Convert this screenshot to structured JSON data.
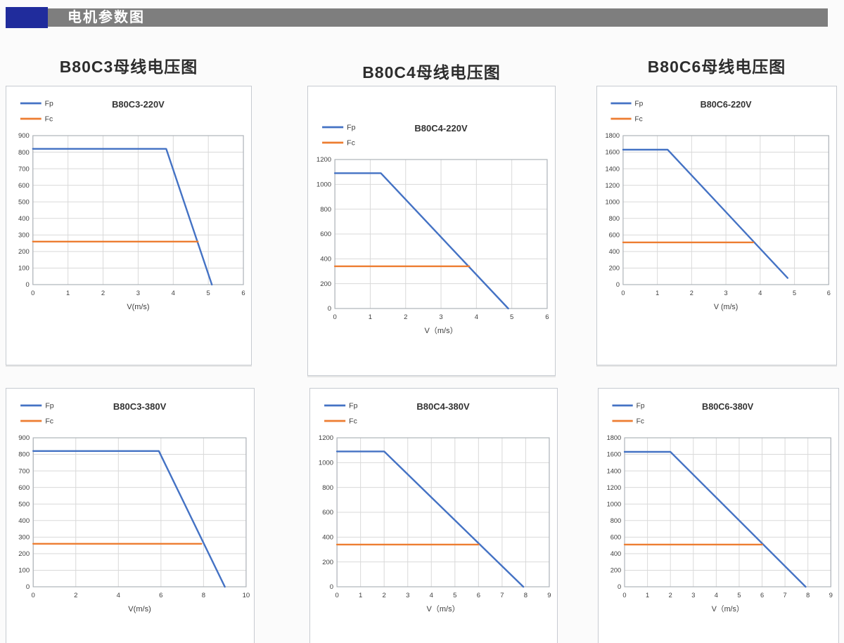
{
  "header": {
    "title": "电机参数图"
  },
  "colors": {
    "accent": "#202c9c",
    "header_bar": "#7e7e7e",
    "fp": "#4472c4",
    "fc": "#ed7d31",
    "grid": "#d9d9d9",
    "axis_line": "#aeb3b9",
    "axis_text": "#3d3d3d",
    "chart_title_text": "#333333"
  },
  "chart_data": [
    {
      "type": "line",
      "heading": "B80C3母线电压图",
      "title": "B80C3-220V",
      "xlabel": "V(m/s)",
      "xlim": [
        0,
        6
      ],
      "xstep": 1,
      "ylim": [
        0,
        900
      ],
      "ystep": 100,
      "legend_position": "top-left",
      "grid": true,
      "series": [
        {
          "name": "Fp",
          "key": "fp",
          "points": [
            [
              0,
              820
            ],
            [
              3.8,
              820
            ],
            [
              5.1,
              0
            ]
          ]
        },
        {
          "name": "Fc",
          "key": "fc",
          "points": [
            [
              0,
              260
            ],
            [
              4.7,
              260
            ]
          ]
        }
      ]
    },
    {
      "type": "line",
      "heading": "B80C4母线电压图",
      "title": "B80C4-220V",
      "xlabel": "V（m/s）",
      "xlim": [
        0,
        6
      ],
      "xstep": 1,
      "ylim": [
        0,
        1200
      ],
      "ystep": 200,
      "legend_position": "top-left",
      "grid": true,
      "series": [
        {
          "name": "Fp",
          "key": "fp",
          "points": [
            [
              0,
              1090
            ],
            [
              1.3,
              1090
            ],
            [
              4.9,
              0
            ]
          ]
        },
        {
          "name": "Fc",
          "key": "fc",
          "points": [
            [
              0,
              340
            ],
            [
              3.8,
              340
            ]
          ]
        }
      ]
    },
    {
      "type": "line",
      "heading": "B80C6母线电压图",
      "title": "B80C6-220V",
      "xlabel": "V (m/s)",
      "xlim": [
        0,
        6
      ],
      "xstep": 1,
      "ylim": [
        0,
        1800
      ],
      "ystep": 200,
      "legend_position": "top-left",
      "grid": true,
      "series": [
        {
          "name": "Fp",
          "key": "fp",
          "points": [
            [
              0,
              1630
            ],
            [
              1.3,
              1630
            ],
            [
              4.8,
              80
            ]
          ]
        },
        {
          "name": "Fc",
          "key": "fc",
          "points": [
            [
              0,
              510
            ],
            [
              3.8,
              510
            ]
          ]
        }
      ]
    },
    {
      "type": "line",
      "heading": "",
      "title": "B80C3-380V",
      "xlabel": "V(m/s)",
      "xlim": [
        0,
        10
      ],
      "xstep": 2,
      "ylim": [
        0,
        900
      ],
      "ystep": 100,
      "legend_position": "top-left",
      "grid": true,
      "series": [
        {
          "name": "Fp",
          "key": "fp",
          "points": [
            [
              0,
              820
            ],
            [
              5.9,
              820
            ],
            [
              9,
              0
            ]
          ]
        },
        {
          "name": "Fc",
          "key": "fc",
          "points": [
            [
              0,
              260
            ],
            [
              7.9,
              260
            ]
          ]
        }
      ]
    },
    {
      "type": "line",
      "heading": "",
      "title": "B80C4-380V",
      "xlabel": "V（m/s）",
      "xlim": [
        0,
        9
      ],
      "xstep": 1,
      "ylim": [
        0,
        1200
      ],
      "ystep": 200,
      "legend_position": "top-left",
      "grid": true,
      "series": [
        {
          "name": "Fp",
          "key": "fp",
          "points": [
            [
              0,
              1090
            ],
            [
              2,
              1090
            ],
            [
              7.9,
              0
            ]
          ]
        },
        {
          "name": "Fc",
          "key": "fc",
          "points": [
            [
              0,
              340
            ],
            [
              6,
              340
            ]
          ]
        }
      ]
    },
    {
      "type": "line",
      "heading": "",
      "title": "B80C6-380V",
      "xlabel": "V（m/s）",
      "xlim": [
        0,
        9
      ],
      "xstep": 1,
      "ylim": [
        0,
        1800
      ],
      "ystep": 200,
      "legend_position": "top-left",
      "grid": true,
      "series": [
        {
          "name": "Fp",
          "key": "fp",
          "points": [
            [
              0,
              1630
            ],
            [
              2,
              1630
            ],
            [
              7.9,
              0
            ]
          ]
        },
        {
          "name": "Fc",
          "key": "fc",
          "points": [
            [
              0,
              510
            ],
            [
              6,
              510
            ]
          ]
        }
      ]
    }
  ]
}
